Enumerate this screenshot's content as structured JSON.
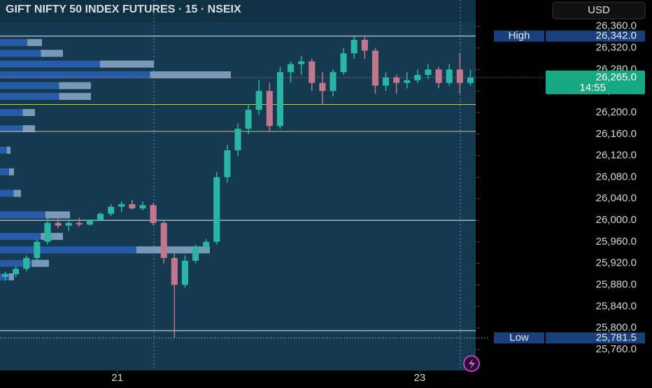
{
  "chart_data": {
    "type": "candlestick",
    "title": "GIFT NIFTY 50 INDEX FUTURES · 15 · NSEIX",
    "currency": "USD",
    "up_color": "#2bb5a4",
    "down_color": "#c2778f",
    "open": [
      25895,
      25900,
      25910,
      25930,
      25960,
      25995,
      25990,
      25995,
      25992,
      26000,
      26012,
      26025,
      26030,
      26022,
      26028,
      25995,
      25930,
      25880,
      25925,
      25950,
      25960,
      26080,
      26130,
      26170,
      26205,
      26240,
      26175,
      26275,
      26290,
      26295,
      26255,
      26240,
      26275,
      26310,
      26335,
      26315,
      26250,
      26265,
      26255,
      26260,
      26270,
      26280,
      26255,
      26280,
      26255
    ],
    "high": [
      25905,
      25915,
      25935,
      25965,
      26005,
      26010,
      26000,
      26005,
      26002,
      26015,
      26030,
      26035,
      26038,
      26035,
      26032,
      26000,
      25940,
      25935,
      25955,
      25965,
      26090,
      26140,
      26180,
      26215,
      26260,
      26255,
      26285,
      26295,
      26305,
      26300,
      26275,
      26280,
      26320,
      26342,
      26340,
      26320,
      26275,
      26270,
      26275,
      26280,
      26290,
      26285,
      26290,
      26310,
      26280
    ],
    "low": [
      25888,
      25895,
      25905,
      25925,
      25955,
      25985,
      25980,
      25988,
      25990,
      25998,
      26008,
      26015,
      26020,
      26018,
      25990,
      25920,
      25781.5,
      25875,
      25920,
      25945,
      25955,
      26070,
      26120,
      26160,
      26195,
      26165,
      26170,
      26255,
      26270,
      26240,
      26215,
      26230,
      26270,
      26300,
      26300,
      26235,
      26240,
      26235,
      26245,
      26255,
      26262,
      26245,
      26250,
      26235,
      26250
    ],
    "close": [
      25900,
      25910,
      25930,
      25960,
      25995,
      25990,
      25995,
      25992,
      26000,
      26012,
      26025,
      26030,
      26022,
      26028,
      25995,
      25930,
      25880,
      25925,
      25950,
      25960,
      26080,
      26130,
      26170,
      26205,
      26240,
      26175,
      26275,
      26290,
      26295,
      26255,
      26240,
      26275,
      26310,
      26335,
      26315,
      26250,
      26265,
      26255,
      26260,
      26270,
      26280,
      26255,
      26280,
      26255,
      26265
    ],
    "xlim": [
      0,
      45
    ],
    "xticks": [
      {
        "value": 11.1,
        "label": "21"
      },
      {
        "value": 39.7,
        "label": "23"
      }
    ],
    "ylim": [
      25721,
      26409
    ],
    "yticks": [
      {
        "value": 25760,
        "label": "25,760.0"
      },
      {
        "value": 25800,
        "label": "25,800.0"
      },
      {
        "value": 25840,
        "label": "25,840.0"
      },
      {
        "value": 25880,
        "label": "25,880.0"
      },
      {
        "value": 25920,
        "label": "25,920.0"
      },
      {
        "value": 25960,
        "label": "25,960.0"
      },
      {
        "value": 26000,
        "label": "26,000.0"
      },
      {
        "value": 26040,
        "label": "26,040.0"
      },
      {
        "value": 26080,
        "label": "26,080.0"
      },
      {
        "value": 26120,
        "label": "26,120.0"
      },
      {
        "value": 26160,
        "label": "26,160.0"
      },
      {
        "value": 26200,
        "label": "26,200.0"
      },
      {
        "value": 26240,
        "label": "26,240.0"
      },
      {
        "value": 26280,
        "label": "26,280.0"
      },
      {
        "value": 26320,
        "label": "26,320.0"
      },
      {
        "value": 26360,
        "label": "26,360.0"
      }
    ],
    "levels": [
      {
        "value": 26342,
        "color": "#e8eef2"
      },
      {
        "value": 26215,
        "color": "#c9c07a"
      },
      {
        "value": 26165,
        "color": "#c9c07a"
      },
      {
        "value": 26000,
        "color": "#e8eef2"
      },
      {
        "value": 25795,
        "color": "#e8eef2"
      }
    ],
    "high_marker": {
      "label": "High",
      "value": 26342,
      "value_label": "26,342.0"
    },
    "low_marker": {
      "label": "Low",
      "value": 25781.5,
      "value_label": "25,781.5"
    },
    "last_price": {
      "value": 26265,
      "value_label": "26,265.0",
      "countdown": "14:55"
    },
    "volume_profile": {
      "prices": [
        26330,
        26310,
        26290,
        26270,
        26250,
        26230,
        26200,
        26170,
        26130,
        26090,
        26050,
        26010,
        25970,
        25945,
        25920,
        25895
      ],
      "values": [
        60,
        90,
        220,
        330,
        130,
        130,
        50,
        50,
        15,
        20,
        30,
        100,
        90,
        300,
        70,
        20
      ]
    }
  }
}
